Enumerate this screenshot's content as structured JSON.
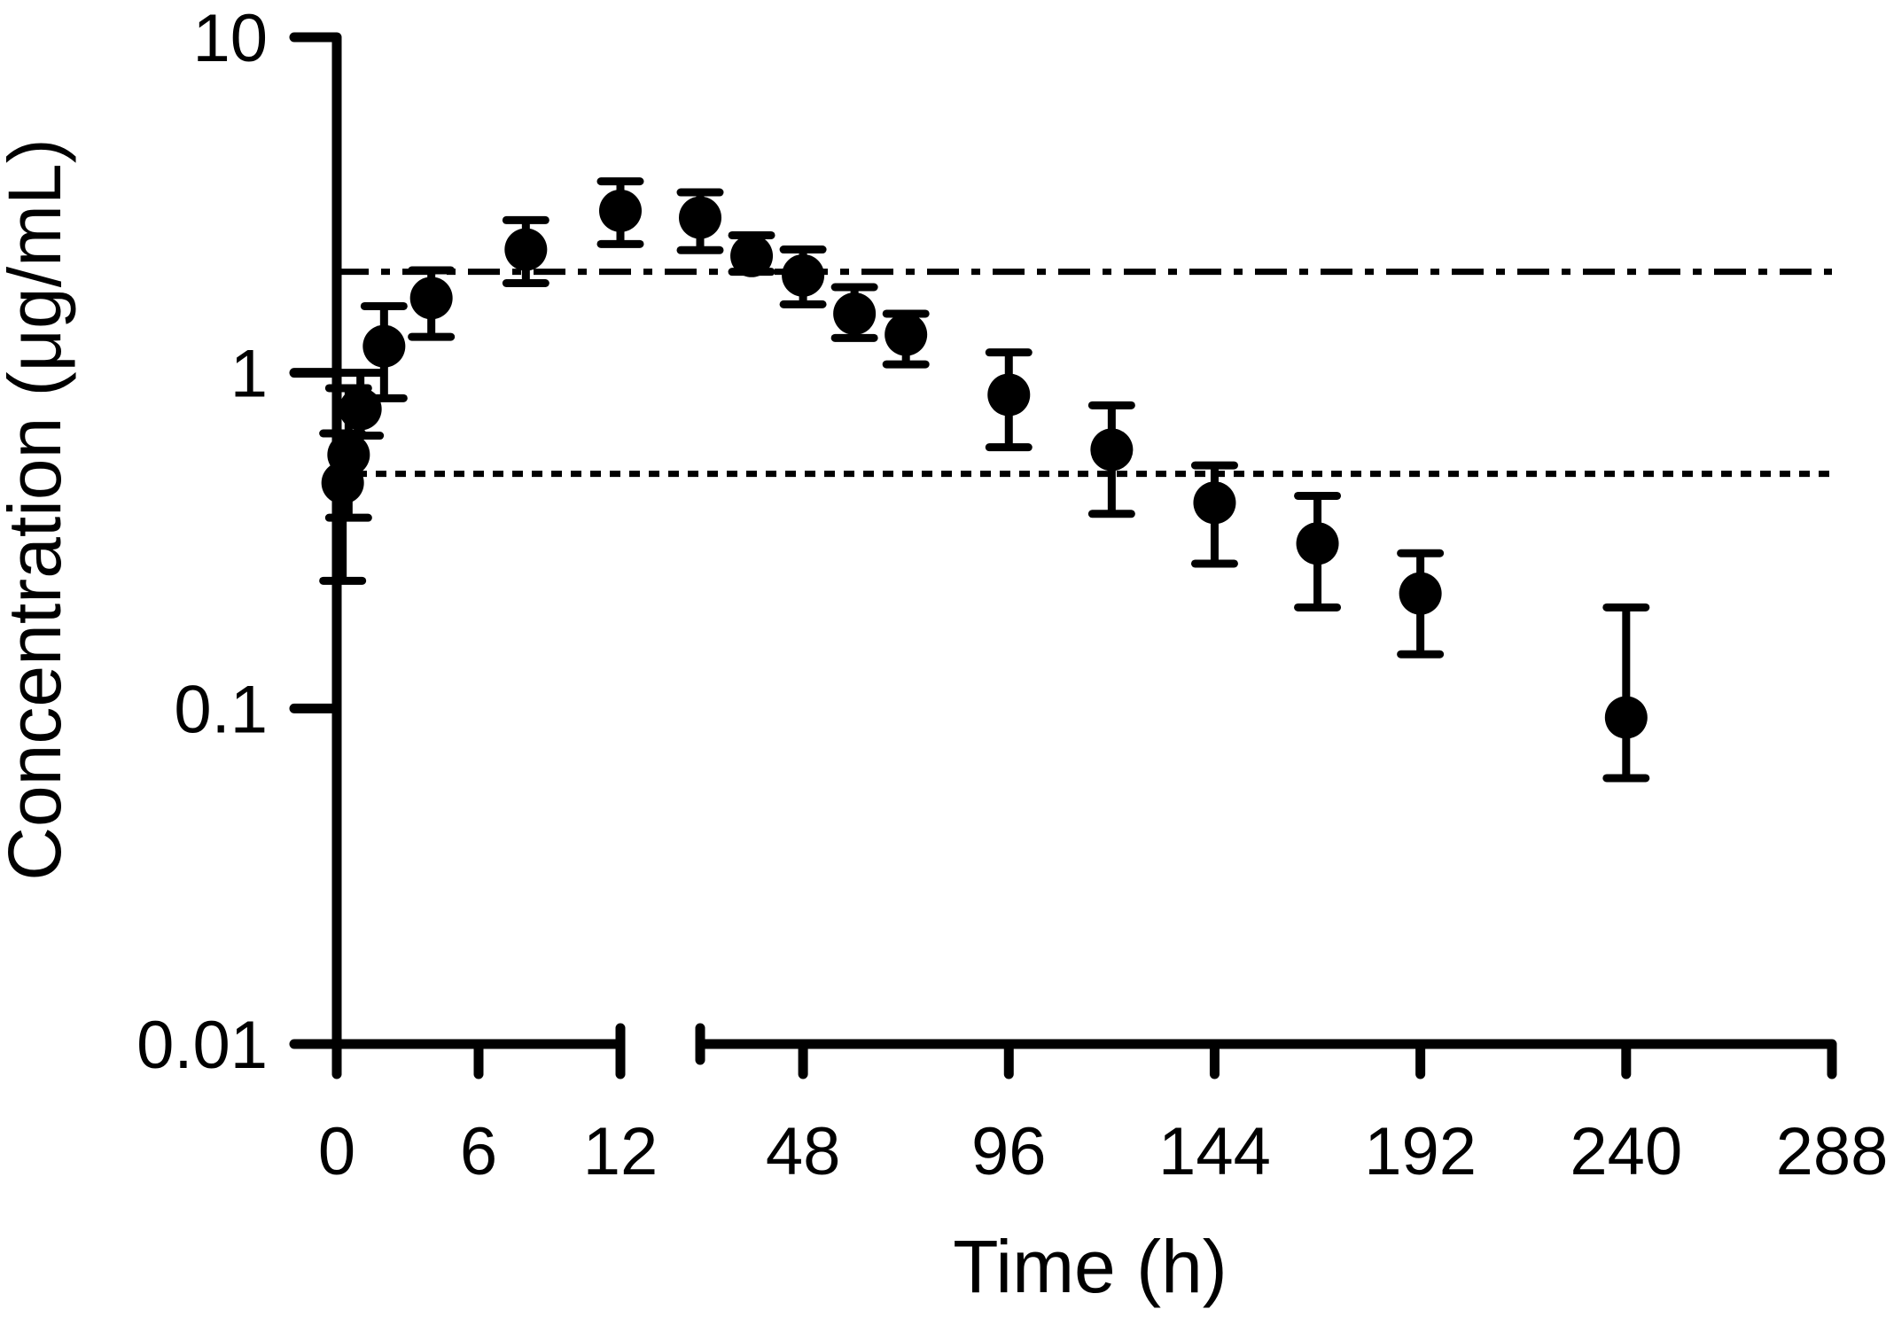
{
  "chart_data": {
    "type": "scatter",
    "xlabel": "Time (h)",
    "ylabel": "Concentration (μg/mL)",
    "y_scale": "log",
    "ylim": [
      0.01,
      10
    ],
    "y_ticks": [
      "0.01",
      "0.1",
      "1",
      "10"
    ],
    "x_axis_broken": true,
    "x_segments": [
      {
        "range": [
          0,
          12
        ],
        "ticks": [
          "0",
          "6",
          "12"
        ]
      },
      {
        "range": [
          24,
          288
        ],
        "ticks": [
          "48",
          "96",
          "144",
          "192",
          "240",
          "288"
        ]
      }
    ],
    "series": [
      {
        "marker": "filled-circle",
        "color": "#000000",
        "points": [
          {
            "x": 0.25,
            "y": 0.47,
            "lo": 0.24,
            "hi": 0.66
          },
          {
            "x": 0.5,
            "y": 0.57,
            "lo": 0.37,
            "hi": 0.9
          },
          {
            "x": 1,
            "y": 0.78,
            "lo": 0.65,
            "hi": 1.0
          },
          {
            "x": 2,
            "y": 1.2,
            "lo": 0.84,
            "hi": 1.58
          },
          {
            "x": 4,
            "y": 1.67,
            "lo": 1.28,
            "hi": 2.02
          },
          {
            "x": 8,
            "y": 2.33,
            "lo": 1.85,
            "hi": 2.85
          },
          {
            "x": 12,
            "y": 3.04,
            "lo": 2.42,
            "hi": 3.72
          },
          {
            "x": 24,
            "y": 2.9,
            "lo": 2.32,
            "hi": 3.45
          },
          {
            "x": 36,
            "y": 2.23,
            "lo": 2.0,
            "hi": 2.57
          },
          {
            "x": 48,
            "y": 1.95,
            "lo": 1.6,
            "hi": 2.33
          },
          {
            "x": 60,
            "y": 1.5,
            "lo": 1.27,
            "hi": 1.8
          },
          {
            "x": 72,
            "y": 1.3,
            "lo": 1.06,
            "hi": 1.5
          },
          {
            "x": 96,
            "y": 0.86,
            "lo": 0.6,
            "hi": 1.15
          },
          {
            "x": 120,
            "y": 0.59,
            "lo": 0.38,
            "hi": 0.8
          },
          {
            "x": 144,
            "y": 0.41,
            "lo": 0.27,
            "hi": 0.53
          },
          {
            "x": 168,
            "y": 0.31,
            "lo": 0.2,
            "hi": 0.43
          },
          {
            "x": 192,
            "y": 0.22,
            "lo": 0.145,
            "hi": 0.29
          },
          {
            "x": 240,
            "y": 0.094,
            "lo": 0.062,
            "hi": 0.2
          }
        ]
      }
    ],
    "reference_lines": [
      {
        "y": 2.0,
        "style": "dash-dot"
      },
      {
        "y": 0.5,
        "style": "dotted"
      }
    ],
    "grid": false,
    "legend": "none"
  }
}
